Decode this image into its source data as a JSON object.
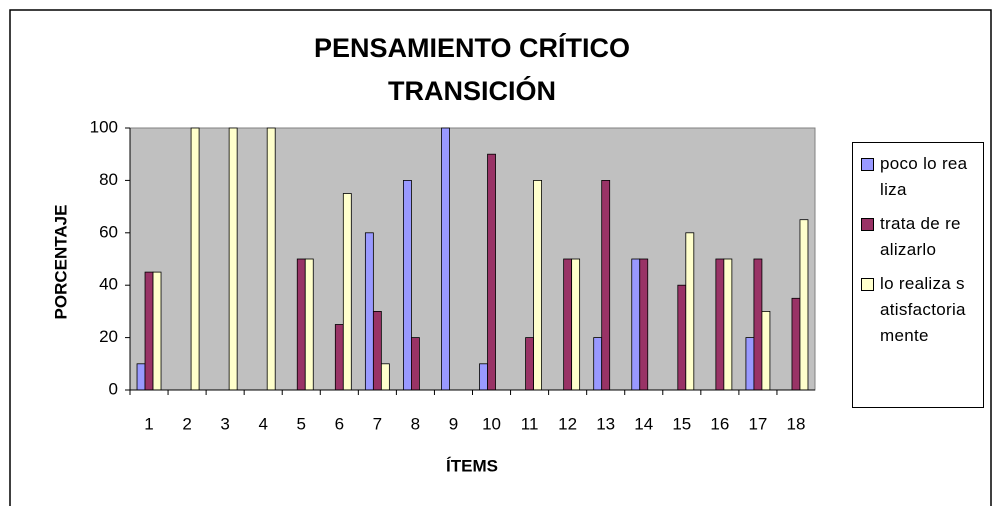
{
  "chart_data": {
    "type": "bar",
    "title": [
      "PENSAMIENTO CRÍTICO",
      "TRANSICIÓN"
    ],
    "x_label": "ÍTEMS",
    "y_label": "PORCENTAJE",
    "categories": [
      "1",
      "2",
      "3",
      "4",
      "5",
      "6",
      "7",
      "8",
      "9",
      "10",
      "11",
      "12",
      "13",
      "14",
      "15",
      "16",
      "17",
      "18"
    ],
    "series": [
      {
        "name": "poco lo realiza",
        "color": "#9999ff",
        "values": [
          10,
          0,
          0,
          0,
          0,
          0,
          60,
          80,
          100,
          10,
          0,
          0,
          20,
          50,
          0,
          0,
          20,
          0
        ]
      },
      {
        "name": "trata de realizarlo",
        "color": "#993366",
        "values": [
          45,
          0,
          0,
          0,
          50,
          25,
          30,
          20,
          0,
          90,
          20,
          50,
          80,
          50,
          40,
          50,
          50,
          35
        ]
      },
      {
        "name": "lo realiza satisfactoriamente",
        "color": "#ffffcc",
        "values": [
          45,
          100,
          100,
          100,
          50,
          75,
          10,
          0,
          0,
          0,
          80,
          50,
          0,
          0,
          60,
          50,
          30,
          65
        ]
      }
    ],
    "ylim": [
      0,
      100
    ],
    "yticks": [
      0,
      20,
      40,
      60,
      80,
      100
    ],
    "legend": "right",
    "plot_background": "#c0c0c0"
  }
}
